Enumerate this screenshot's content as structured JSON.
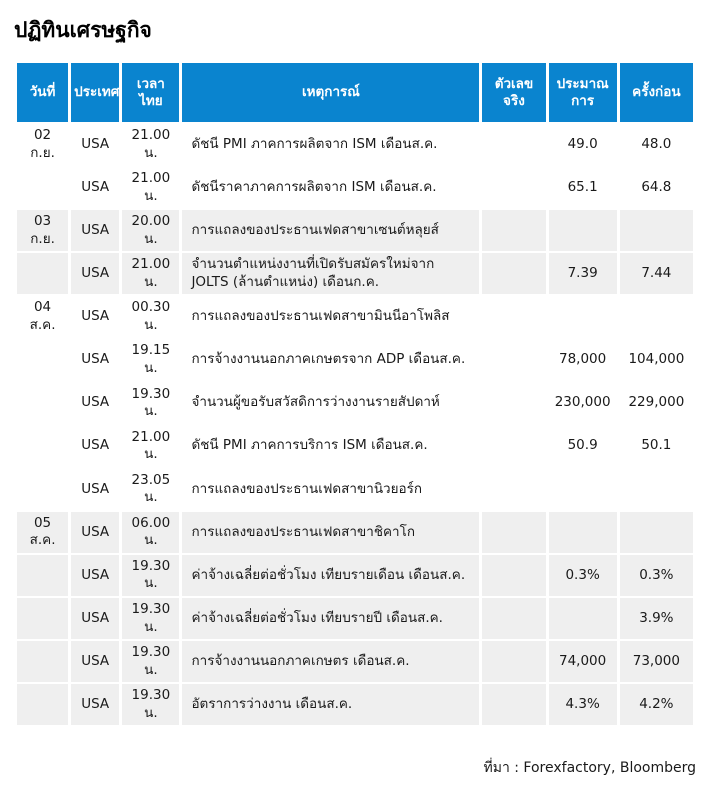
{
  "page": {
    "title": "ปฏิทินเศรษฐกิจ",
    "source_note": "ที่มา : Forexfactory, Bloomberg"
  },
  "colors": {
    "header_bg": "#0a84cf",
    "header_text": "#ffffff",
    "shaded_row_bg": "#efefef",
    "body_text": "#1a1a1a"
  },
  "table": {
    "columns": [
      {
        "key": "date",
        "label": "วันที่"
      },
      {
        "key": "country",
        "label": "ประเทศ"
      },
      {
        "key": "time",
        "label": "เวลาไทย"
      },
      {
        "key": "event",
        "label": "เหตุการณ์"
      },
      {
        "key": "actual",
        "label": "ตัวเลขจริง"
      },
      {
        "key": "forecast",
        "label": "ประมาณการ"
      },
      {
        "key": "previous",
        "label": "ครั้งก่อน"
      }
    ],
    "rows": [
      {
        "date": "02 ก.ย.",
        "country": "USA",
        "time": "21.00 น.",
        "event": "ดัชนี PMI ภาคการผลิตจาก ISM เดือนส.ค.",
        "actual": "",
        "forecast": "49.0",
        "previous": "48.0",
        "shaded": false
      },
      {
        "date": "",
        "country": "USA",
        "time": "21.00 น.",
        "event": "ดัชนีราคาภาคการผลิตจาก ISM เดือนส.ค.",
        "actual": "",
        "forecast": "65.1",
        "previous": "64.8",
        "shaded": false
      },
      {
        "date": "03 ก.ย.",
        "country": "USA",
        "time": "20.00 น.",
        "event": "การแถลงของประธานเฟดสาขาเซนต์หลุยส์",
        "actual": "",
        "forecast": "",
        "previous": "",
        "shaded": true
      },
      {
        "date": "",
        "country": "USA",
        "time": "21.00 น.",
        "event": "จำนวนตำแหน่งงานที่เปิดรับสมัครใหม่จาก JOLTS (ล้านตำแหน่ง) เดือนก.ค.",
        "actual": "",
        "forecast": "7.39",
        "previous": "7.44",
        "shaded": true
      },
      {
        "date": "04 ส.ค.",
        "country": "USA",
        "time": "00.30 น.",
        "event": "การแถลงของประธานเฟดสาขามินนีอาโพลิส",
        "actual": "",
        "forecast": "",
        "previous": "",
        "shaded": false
      },
      {
        "date": "",
        "country": "USA",
        "time": "19.15 น.",
        "event": "การจ้างงานนอกภาคเกษตรจาก ADP เดือนส.ค.",
        "actual": "",
        "forecast": "78,000",
        "previous": "104,000",
        "shaded": false
      },
      {
        "date": "",
        "country": "USA",
        "time": "19.30 น.",
        "event": "จำนวนผู้ขอรับสวัสดิการว่างงานรายสัปดาห์",
        "actual": "",
        "forecast": "230,000",
        "previous": "229,000",
        "shaded": false
      },
      {
        "date": "",
        "country": "USA",
        "time": "21.00 น.",
        "event": "ดัชนี PMI ภาคการบริการ ISM เดือนส.ค.",
        "actual": "",
        "forecast": "50.9",
        "previous": "50.1",
        "shaded": false
      },
      {
        "date": "",
        "country": "USA",
        "time": "23.05 น.",
        "event": "การแถลงของประธานเฟดสาขานิวยอร์ก",
        "actual": "",
        "forecast": "",
        "previous": "",
        "shaded": false
      },
      {
        "date": "05 ส.ค.",
        "country": "USA",
        "time": "06.00 น.",
        "event": "การแถลงของประธานเฟดสาขาชิคาโก",
        "actual": "",
        "forecast": "",
        "previous": "",
        "shaded": true
      },
      {
        "date": "",
        "country": "USA",
        "time": "19.30 น.",
        "event": "ค่าจ้างเฉลี่ยต่อชั่วโมง เทียบรายเดือน เดือนส.ค.",
        "actual": "",
        "forecast": "0.3%",
        "previous": "0.3%",
        "shaded": true
      },
      {
        "date": "",
        "country": "USA",
        "time": "19.30 น.",
        "event": "ค่าจ้างเฉลี่ยต่อชั่วโมง เทียบรายปี เดือนส.ค.",
        "actual": "",
        "forecast": "",
        "previous": "3.9%",
        "shaded": true
      },
      {
        "date": "",
        "country": "USA",
        "time": "19.30 น.",
        "event": "การจ้างงานนอกภาคเกษตร เดือนส.ค.",
        "actual": "",
        "forecast": "74,000",
        "previous": "73,000",
        "shaded": true
      },
      {
        "date": "",
        "country": "USA",
        "time": "19.30 น.",
        "event": "อัตราการว่างงาน เดือนส.ค.",
        "actual": "",
        "forecast": "4.3%",
        "previous": "4.2%",
        "shaded": true
      }
    ]
  }
}
